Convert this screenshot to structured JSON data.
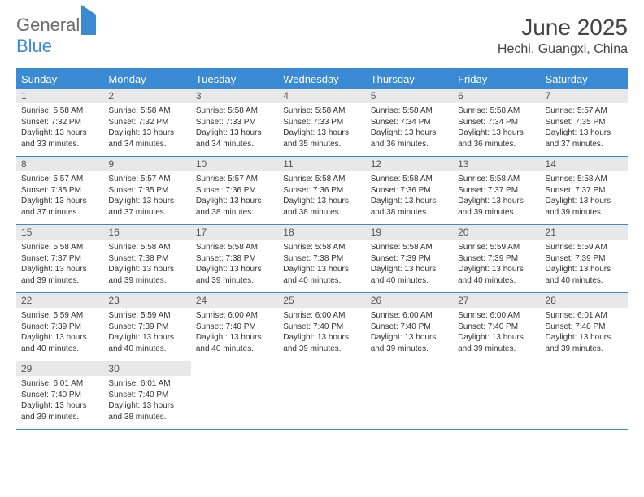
{
  "logo": {
    "part1": "General",
    "part2": "Blue"
  },
  "title": "June 2025",
  "location": "Hechi, Guangxi, China",
  "colors": {
    "header_blue": "#3b8bd4",
    "daynum_bg": "#e8e8e8",
    "text": "#333333",
    "title_text": "#444444",
    "background": "#ffffff"
  },
  "day_names": [
    "Sunday",
    "Monday",
    "Tuesday",
    "Wednesday",
    "Thursday",
    "Friday",
    "Saturday"
  ],
  "weeks": [
    [
      {
        "num": "1",
        "sunrise": "Sunrise: 5:58 AM",
        "sunset": "Sunset: 7:32 PM",
        "daylight": "Daylight: 13 hours and 33 minutes."
      },
      {
        "num": "2",
        "sunrise": "Sunrise: 5:58 AM",
        "sunset": "Sunset: 7:32 PM",
        "daylight": "Daylight: 13 hours and 34 minutes."
      },
      {
        "num": "3",
        "sunrise": "Sunrise: 5:58 AM",
        "sunset": "Sunset: 7:33 PM",
        "daylight": "Daylight: 13 hours and 34 minutes."
      },
      {
        "num": "4",
        "sunrise": "Sunrise: 5:58 AM",
        "sunset": "Sunset: 7:33 PM",
        "daylight": "Daylight: 13 hours and 35 minutes."
      },
      {
        "num": "5",
        "sunrise": "Sunrise: 5:58 AM",
        "sunset": "Sunset: 7:34 PM",
        "daylight": "Daylight: 13 hours and 36 minutes."
      },
      {
        "num": "6",
        "sunrise": "Sunrise: 5:58 AM",
        "sunset": "Sunset: 7:34 PM",
        "daylight": "Daylight: 13 hours and 36 minutes."
      },
      {
        "num": "7",
        "sunrise": "Sunrise: 5:57 AM",
        "sunset": "Sunset: 7:35 PM",
        "daylight": "Daylight: 13 hours and 37 minutes."
      }
    ],
    [
      {
        "num": "8",
        "sunrise": "Sunrise: 5:57 AM",
        "sunset": "Sunset: 7:35 PM",
        "daylight": "Daylight: 13 hours and 37 minutes."
      },
      {
        "num": "9",
        "sunrise": "Sunrise: 5:57 AM",
        "sunset": "Sunset: 7:35 PM",
        "daylight": "Daylight: 13 hours and 37 minutes."
      },
      {
        "num": "10",
        "sunrise": "Sunrise: 5:57 AM",
        "sunset": "Sunset: 7:36 PM",
        "daylight": "Daylight: 13 hours and 38 minutes."
      },
      {
        "num": "11",
        "sunrise": "Sunrise: 5:58 AM",
        "sunset": "Sunset: 7:36 PM",
        "daylight": "Daylight: 13 hours and 38 minutes."
      },
      {
        "num": "12",
        "sunrise": "Sunrise: 5:58 AM",
        "sunset": "Sunset: 7:36 PM",
        "daylight": "Daylight: 13 hours and 38 minutes."
      },
      {
        "num": "13",
        "sunrise": "Sunrise: 5:58 AM",
        "sunset": "Sunset: 7:37 PM",
        "daylight": "Daylight: 13 hours and 39 minutes."
      },
      {
        "num": "14",
        "sunrise": "Sunrise: 5:58 AM",
        "sunset": "Sunset: 7:37 PM",
        "daylight": "Daylight: 13 hours and 39 minutes."
      }
    ],
    [
      {
        "num": "15",
        "sunrise": "Sunrise: 5:58 AM",
        "sunset": "Sunset: 7:37 PM",
        "daylight": "Daylight: 13 hours and 39 minutes."
      },
      {
        "num": "16",
        "sunrise": "Sunrise: 5:58 AM",
        "sunset": "Sunset: 7:38 PM",
        "daylight": "Daylight: 13 hours and 39 minutes."
      },
      {
        "num": "17",
        "sunrise": "Sunrise: 5:58 AM",
        "sunset": "Sunset: 7:38 PM",
        "daylight": "Daylight: 13 hours and 39 minutes."
      },
      {
        "num": "18",
        "sunrise": "Sunrise: 5:58 AM",
        "sunset": "Sunset: 7:38 PM",
        "daylight": "Daylight: 13 hours and 40 minutes."
      },
      {
        "num": "19",
        "sunrise": "Sunrise: 5:58 AM",
        "sunset": "Sunset: 7:39 PM",
        "daylight": "Daylight: 13 hours and 40 minutes."
      },
      {
        "num": "20",
        "sunrise": "Sunrise: 5:59 AM",
        "sunset": "Sunset: 7:39 PM",
        "daylight": "Daylight: 13 hours and 40 minutes."
      },
      {
        "num": "21",
        "sunrise": "Sunrise: 5:59 AM",
        "sunset": "Sunset: 7:39 PM",
        "daylight": "Daylight: 13 hours and 40 minutes."
      }
    ],
    [
      {
        "num": "22",
        "sunrise": "Sunrise: 5:59 AM",
        "sunset": "Sunset: 7:39 PM",
        "daylight": "Daylight: 13 hours and 40 minutes."
      },
      {
        "num": "23",
        "sunrise": "Sunrise: 5:59 AM",
        "sunset": "Sunset: 7:39 PM",
        "daylight": "Daylight: 13 hours and 40 minutes."
      },
      {
        "num": "24",
        "sunrise": "Sunrise: 6:00 AM",
        "sunset": "Sunset: 7:40 PM",
        "daylight": "Daylight: 13 hours and 40 minutes."
      },
      {
        "num": "25",
        "sunrise": "Sunrise: 6:00 AM",
        "sunset": "Sunset: 7:40 PM",
        "daylight": "Daylight: 13 hours and 39 minutes."
      },
      {
        "num": "26",
        "sunrise": "Sunrise: 6:00 AM",
        "sunset": "Sunset: 7:40 PM",
        "daylight": "Daylight: 13 hours and 39 minutes."
      },
      {
        "num": "27",
        "sunrise": "Sunrise: 6:00 AM",
        "sunset": "Sunset: 7:40 PM",
        "daylight": "Daylight: 13 hours and 39 minutes."
      },
      {
        "num": "28",
        "sunrise": "Sunrise: 6:01 AM",
        "sunset": "Sunset: 7:40 PM",
        "daylight": "Daylight: 13 hours and 39 minutes."
      }
    ],
    [
      {
        "num": "29",
        "sunrise": "Sunrise: 6:01 AM",
        "sunset": "Sunset: 7:40 PM",
        "daylight": "Daylight: 13 hours and 39 minutes."
      },
      {
        "num": "30",
        "sunrise": "Sunrise: 6:01 AM",
        "sunset": "Sunset: 7:40 PM",
        "daylight": "Daylight: 13 hours and 38 minutes."
      },
      {
        "empty": true
      },
      {
        "empty": true
      },
      {
        "empty": true
      },
      {
        "empty": true
      },
      {
        "empty": true
      }
    ]
  ]
}
